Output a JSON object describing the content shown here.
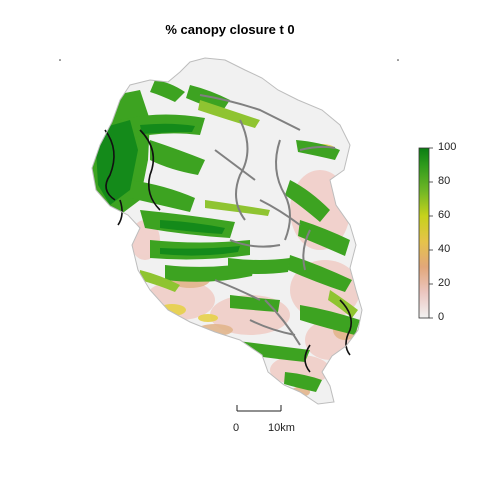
{
  "map": {
    "title": "% canopy closure t 0",
    "legend": {
      "ticks": [
        "100",
        "80",
        "60",
        "40",
        "20",
        "0"
      ],
      "colors": [
        "#f2f2f2",
        "#ebc6c0",
        "#e2a77a",
        "#e6c34a",
        "#d8d51a",
        "#8fc31f",
        "#3aa01c",
        "#0a7d12"
      ]
    },
    "scalebar": {
      "start_label": "0",
      "end_label": "10km"
    },
    "palette": {
      "bare": "#f1f1f1",
      "pink": "#f0cfc9",
      "tan": "#e2b58c",
      "yellow": "#e6d14a",
      "lightgreen": "#8fc431",
      "green": "#3da321",
      "darkgreen": "#148a1a",
      "stream_gray": "#808080",
      "stream_black": "#111111"
    }
  }
}
